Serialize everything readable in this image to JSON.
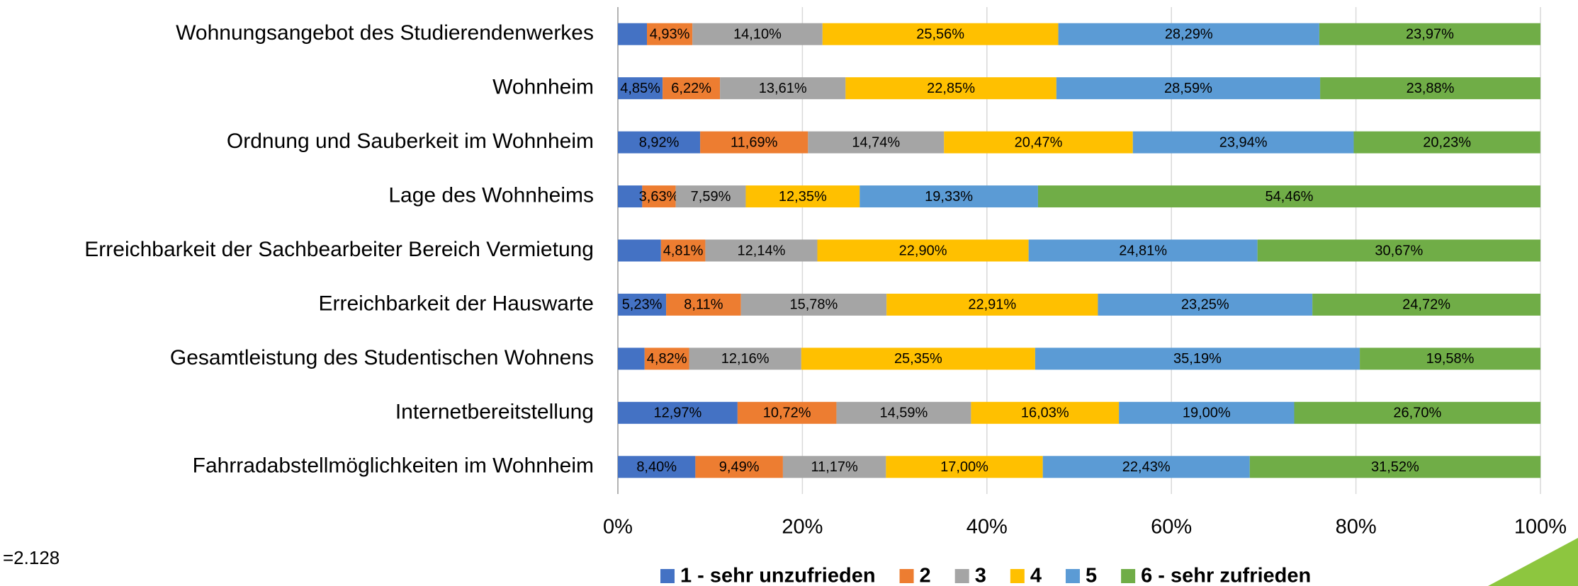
{
  "chart_data": {
    "type": "bar",
    "orientation": "horizontal",
    "stacked": true,
    "categories": [
      "Wohnungsangebot des Studierendenwerkes",
      "Wohnheim",
      "Ordnung und Sauberkeit im Wohnheim",
      "Lage des Wohnheims",
      "Erreichbarkeit der Sachbearbeiter Bereich Vermietung",
      "Erreichbarkeit der Hauswarte",
      "Gesamtleistung des Studentischen Wohnens",
      "Internetbereitstellung",
      "Fahrradabstellmöglichkeiten im Wohnheim"
    ],
    "series": [
      {
        "name": "1 - sehr unzufrieden",
        "color": "#4472c4",
        "values": [
          3.15,
          4.85,
          8.92,
          2.64,
          4.67,
          5.23,
          2.9,
          12.97,
          8.4
        ],
        "value_labels": [
          null,
          "4,85%",
          "8,92%",
          null,
          null,
          "5,23%",
          null,
          "12,97%",
          "8,40%"
        ]
      },
      {
        "name": "2",
        "color": "#ed7d31",
        "values": [
          4.93,
          6.22,
          11.69,
          3.63,
          4.81,
          8.11,
          4.82,
          10.72,
          9.49
        ],
        "value_labels": [
          "4,93%",
          "6,22%",
          "11,69%",
          "3,63%",
          "4,81%",
          "8,11%",
          "4,82%",
          "10,72%",
          "9,49%"
        ]
      },
      {
        "name": "3",
        "color": "#a5a5a5",
        "values": [
          14.1,
          13.61,
          14.74,
          7.59,
          12.14,
          15.78,
          12.16,
          14.59,
          11.17
        ],
        "value_labels": [
          "14,10%",
          "13,61%",
          "14,74%",
          "7,59%",
          "12,14%",
          "15,78%",
          "12,16%",
          "14,59%",
          "11,17%"
        ]
      },
      {
        "name": "4",
        "color": "#ffc000",
        "values": [
          25.56,
          22.85,
          20.47,
          12.35,
          22.9,
          22.91,
          25.35,
          16.03,
          17.0
        ],
        "value_labels": [
          "25,56%",
          "22,85%",
          "20,47%",
          "12,35%",
          "22,90%",
          "22,91%",
          "25,35%",
          "16,03%",
          "17,00%"
        ]
      },
      {
        "name": "5",
        "color": "#5b9bd5",
        "values": [
          28.29,
          28.59,
          23.94,
          19.33,
          24.81,
          23.25,
          35.19,
          19.0,
          22.43
        ],
        "value_labels": [
          "28,29%",
          "28,59%",
          "23,94%",
          "19,33%",
          "24,81%",
          "23,25%",
          "35,19%",
          "19,00%",
          "22,43%"
        ]
      },
      {
        "name": "6 - sehr zufrieden",
        "color": "#70ad47",
        "values": [
          23.97,
          23.88,
          20.23,
          54.46,
          30.67,
          24.72,
          19.58,
          26.7,
          31.52
        ],
        "value_labels": [
          "23,97%",
          "23,88%",
          "20,23%",
          "54,46%",
          "30,67%",
          "24,72%",
          "19,58%",
          "26,70%",
          "31,52%"
        ]
      }
    ],
    "xlim": [
      0,
      100
    ],
    "xticks": [
      {
        "value": 0,
        "label": "0%"
      },
      {
        "value": 20,
        "label": "20%"
      },
      {
        "value": 40,
        "label": "40%"
      },
      {
        "value": 60,
        "label": "60%"
      },
      {
        "value": 80,
        "label": "80%"
      },
      {
        "value": 100,
        "label": "100%"
      }
    ],
    "grid": true,
    "legend": "bottom",
    "annotation": "=2.128"
  }
}
